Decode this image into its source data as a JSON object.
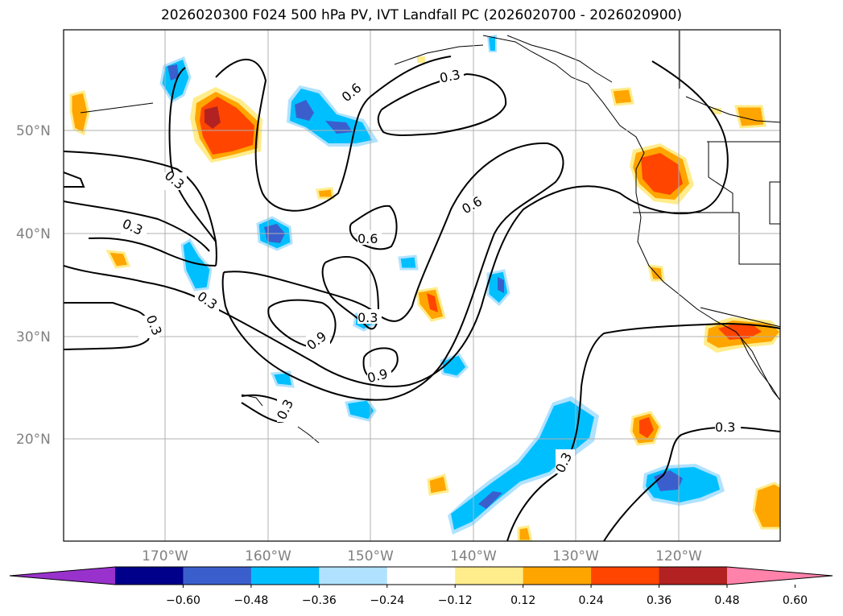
{
  "title": "2026020300 F024 500 hPa PV, IVT Landfall PC (2026020700 - 2026020900)",
  "lat_ticks": [
    "50°N",
    "40°N",
    "30°N",
    "20°N"
  ],
  "lon_ticks": [
    "170°W",
    "160°W",
    "150°W",
    "140°W",
    "130°W",
    "120°W"
  ],
  "contour_labels": [
    "0.3",
    "0.6",
    "0.3",
    "0.6",
    "0.3",
    "0.6",
    "0.3",
    "0.3",
    "0.3",
    "0.9",
    "0.9",
    "0.3",
    "0.3",
    "0.3",
    "0.3"
  ],
  "colorbar": {
    "ticks": [
      "−0.60",
      "−0.48",
      "−0.36",
      "−0.24",
      "−0.12",
      "0.12",
      "0.24",
      "0.36",
      "0.48",
      "0.60"
    ],
    "colors": [
      "#9932cc",
      "#00008b",
      "#3a5fcd",
      "#00bfff",
      "#b0e2ff",
      "#ffffff",
      "#ffec8b",
      "#ffa500",
      "#ff4500",
      "#b22222",
      "#ff82ab"
    ]
  }
}
